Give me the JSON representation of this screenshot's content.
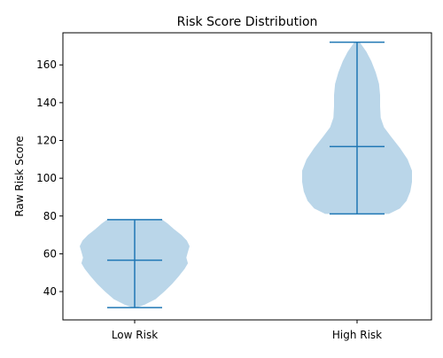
{
  "chart_data": {
    "type": "violin",
    "title": "Risk Score Distribution",
    "xlabel": "",
    "ylabel": "Raw Risk Score",
    "categories": [
      "Low Risk",
      "High Risk"
    ],
    "ylim": [
      25,
      177
    ],
    "yticks": [
      40,
      60,
      80,
      100,
      120,
      140,
      160
    ],
    "grid": false,
    "colors": {
      "body": "#bad6e9",
      "line": "#1f77b4"
    },
    "violins": [
      {
        "category": "Low Risk",
        "min": 31.5,
        "median": 56.6,
        "max": 78.1,
        "density": [
          [
            31.5,
            0.04
          ],
          [
            33,
            0.18
          ],
          [
            36,
            0.38
          ],
          [
            40,
            0.54
          ],
          [
            44,
            0.68
          ],
          [
            48,
            0.8
          ],
          [
            52,
            0.91
          ],
          [
            55,
            0.97
          ],
          [
            58,
            0.94
          ],
          [
            61,
            0.97
          ],
          [
            64,
            1.0
          ],
          [
            67,
            0.95
          ],
          [
            70,
            0.85
          ],
          [
            73,
            0.72
          ],
          [
            76,
            0.6
          ],
          [
            78.1,
            0.5
          ]
        ]
      },
      {
        "category": "High Risk",
        "min": 81.1,
        "median": 116.8,
        "max": 172.0,
        "density": [
          [
            81.1,
            0.58
          ],
          [
            84,
            0.78
          ],
          [
            88,
            0.9
          ],
          [
            93,
            0.97
          ],
          [
            98,
            1.0
          ],
          [
            104,
            1.0
          ],
          [
            110,
            0.92
          ],
          [
            116,
            0.78
          ],
          [
            122,
            0.62
          ],
          [
            127,
            0.49
          ],
          [
            132,
            0.43
          ],
          [
            138,
            0.42
          ],
          [
            144,
            0.42
          ],
          [
            150,
            0.4
          ],
          [
            156,
            0.34
          ],
          [
            162,
            0.26
          ],
          [
            167,
            0.17
          ],
          [
            172.0,
            0.05
          ]
        ]
      }
    ]
  }
}
